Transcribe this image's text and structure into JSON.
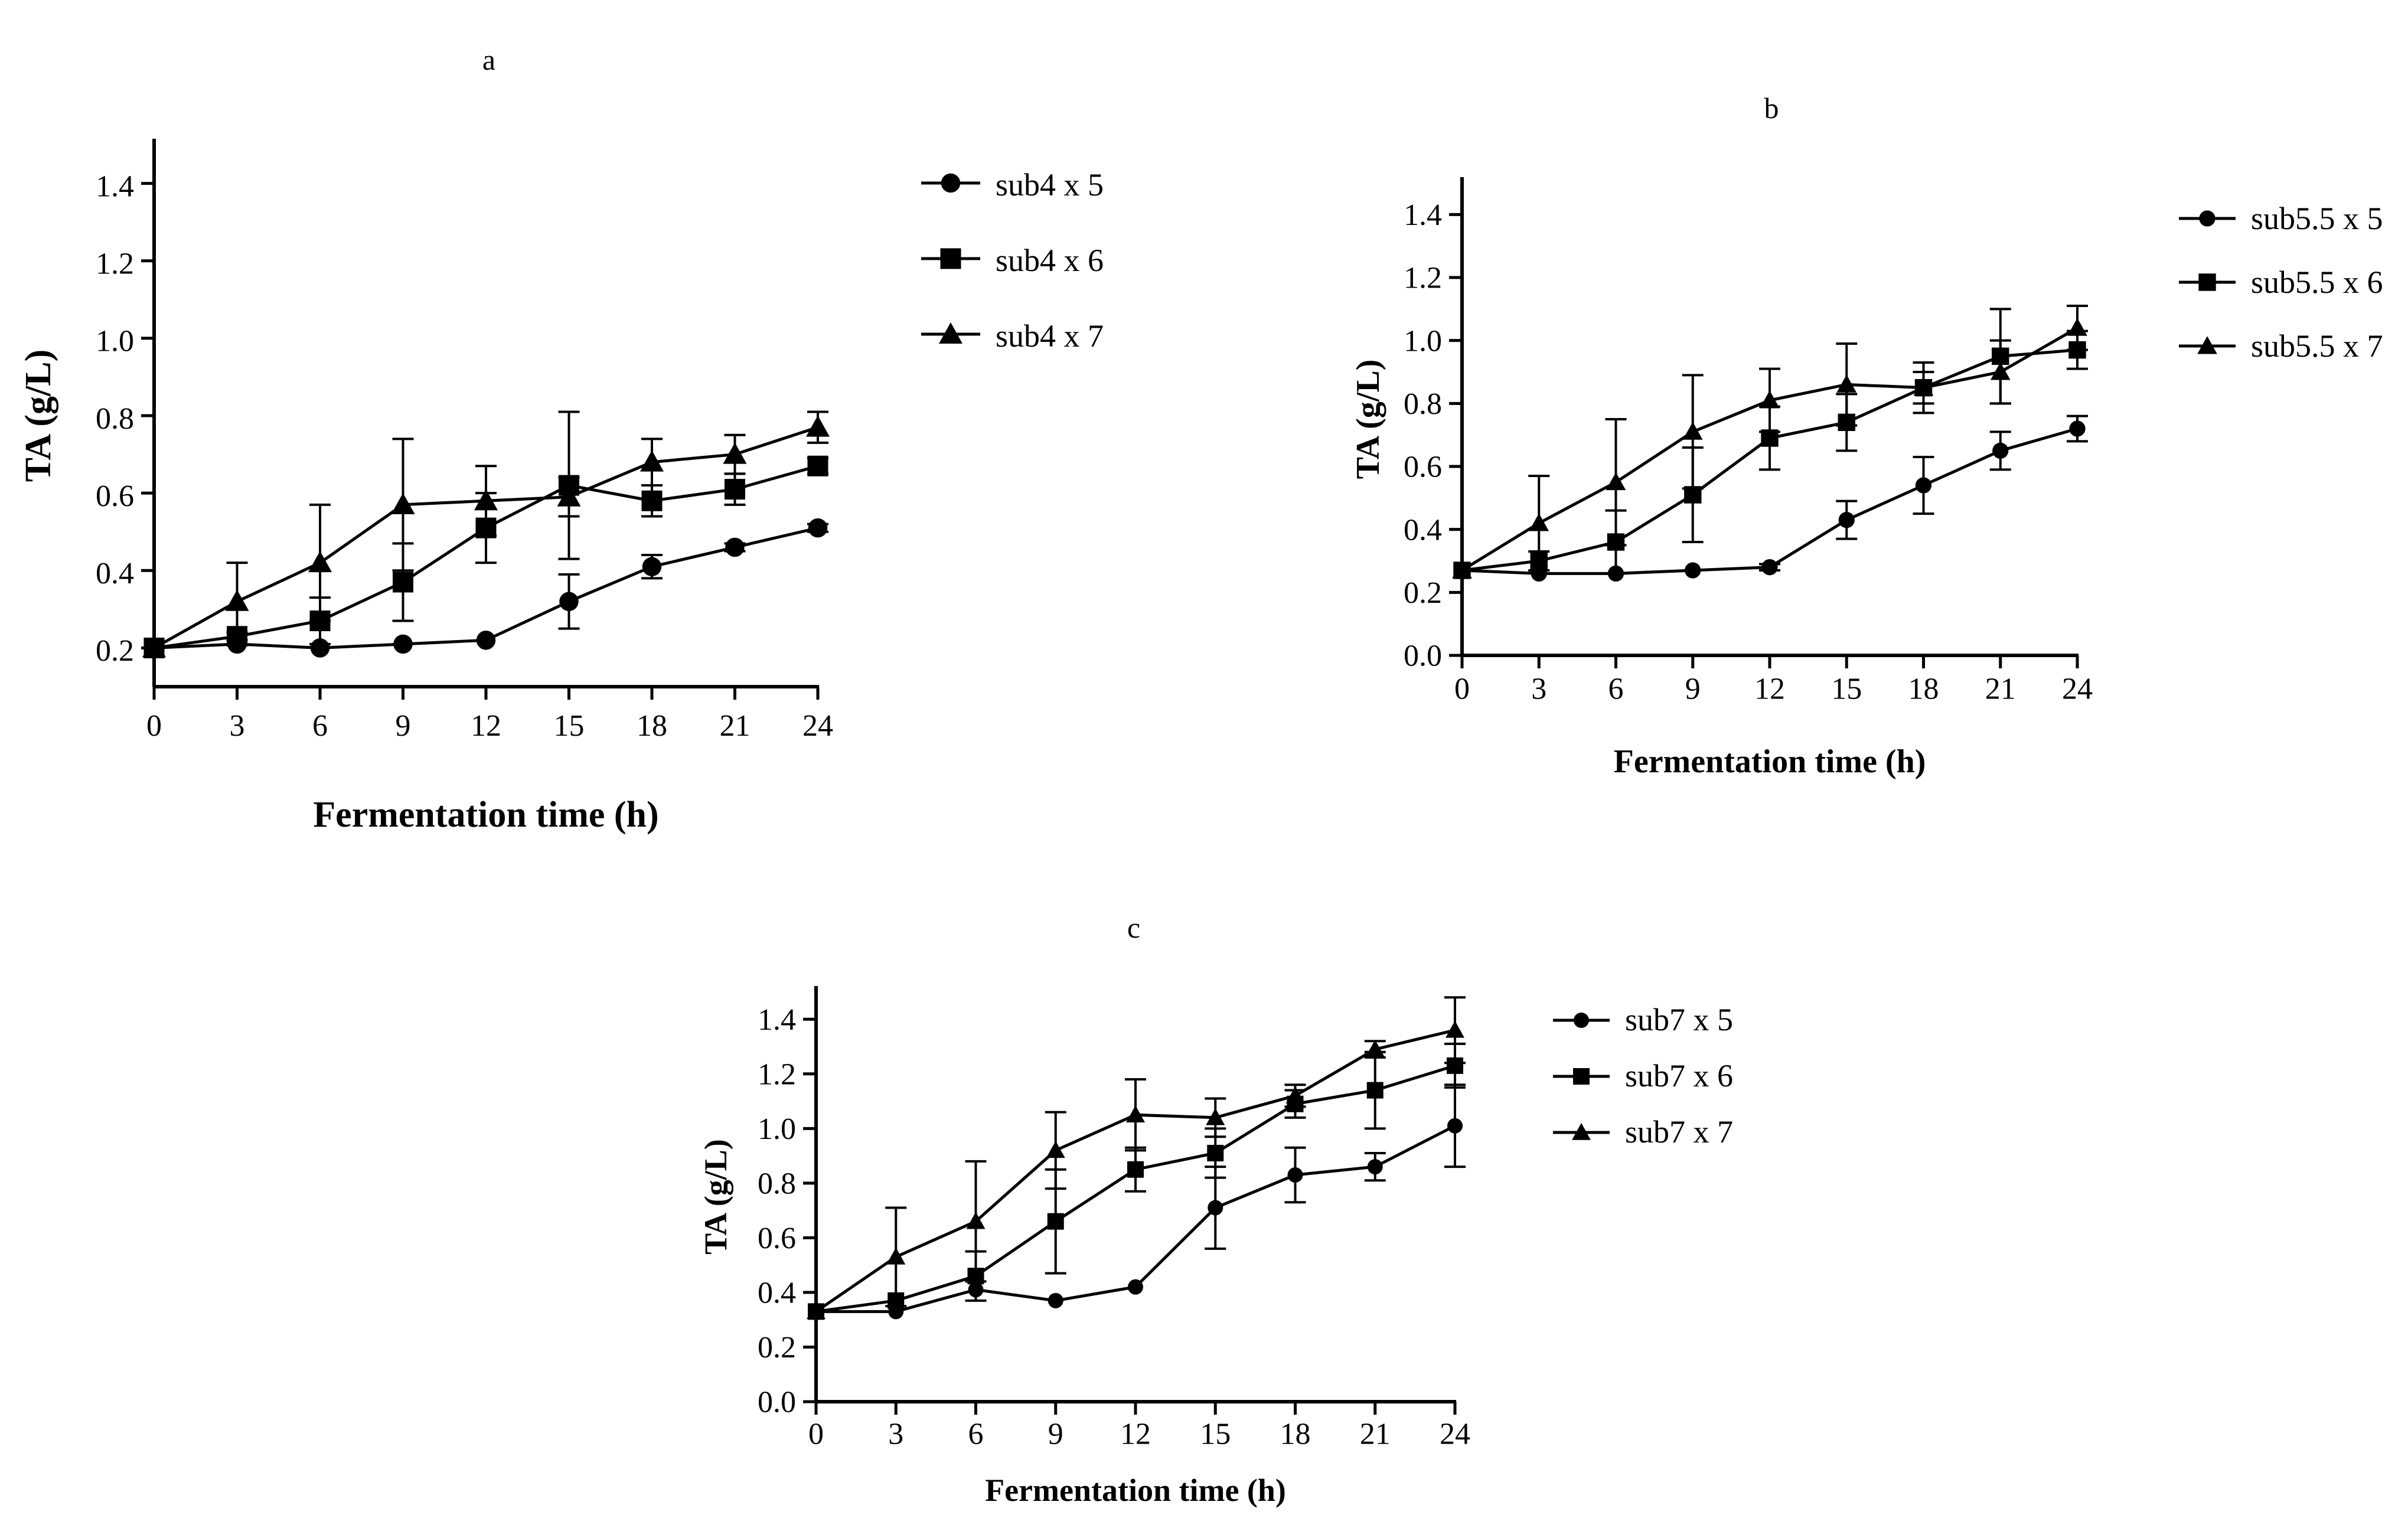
{
  "chart_data": [
    {
      "type": "line",
      "panel": "a",
      "xlabel": "Fermentation time (h)",
      "ylabel": "TA (g/L)",
      "x": [
        0,
        3,
        6,
        9,
        12,
        15,
        18,
        21,
        24
      ],
      "xticks": [
        "0",
        "3",
        "6",
        "9",
        "12",
        "15",
        "18",
        "21",
        "24"
      ],
      "xlim": [
        0,
        24
      ],
      "ylim": [
        0.1,
        1.5
      ],
      "yticks": [
        "0.2",
        "0.4",
        "0.6",
        "0.8",
        "1.0",
        "1.2",
        "1.4"
      ],
      "legend_position": "right",
      "series": [
        {
          "name": "sub4 x 5",
          "marker": "circle",
          "values": [
            0.2,
            0.21,
            0.2,
            0.21,
            0.22,
            0.32,
            0.41,
            0.46,
            0.51
          ],
          "errors": [
            0.0,
            0.0,
            0.0,
            0.0,
            0.0,
            0.07,
            0.03,
            0.01,
            0.01
          ]
        },
        {
          "name": "sub4 x 6",
          "marker": "square",
          "values": [
            0.2,
            0.23,
            0.27,
            0.37,
            0.51,
            0.62,
            0.58,
            0.61,
            0.67
          ],
          "errors": [
            0.0,
            0.01,
            0.06,
            0.1,
            0.09,
            0.19,
            0.04,
            0.04,
            0.02
          ]
        },
        {
          "name": "sub4 x 7",
          "marker": "triangle",
          "values": [
            0.2,
            0.32,
            0.42,
            0.57,
            0.58,
            0.59,
            0.68,
            0.7,
            0.77
          ],
          "errors": [
            0.0,
            0.1,
            0.15,
            0.17,
            0.09,
            0.05,
            0.06,
            0.05,
            0.04
          ]
        }
      ]
    },
    {
      "type": "line",
      "panel": "b",
      "xlabel": "Fermentation time (h)",
      "ylabel": "TA (g/L)",
      "x": [
        0,
        3,
        6,
        9,
        12,
        15,
        18,
        21,
        24
      ],
      "xticks": [
        "0",
        "3",
        "6",
        "9",
        "12",
        "15",
        "18",
        "21",
        "24"
      ],
      "xlim": [
        0,
        24
      ],
      "ylim": [
        0.0,
        1.5
      ],
      "yticks": [
        "0.0",
        "0.2",
        "0.4",
        "0.6",
        "0.8",
        "1.0",
        "1.2",
        "1.4"
      ],
      "legend_position": "right",
      "series": [
        {
          "name": "sub5.5 x 5",
          "marker": "circle",
          "values": [
            0.27,
            0.26,
            0.26,
            0.27,
            0.28,
            0.43,
            0.54,
            0.65,
            0.72
          ],
          "errors": [
            0.0,
            0.0,
            0.0,
            0.0,
            0.01,
            0.06,
            0.09,
            0.06,
            0.04
          ]
        },
        {
          "name": "sub5.5 x 6",
          "marker": "square",
          "values": [
            0.27,
            0.3,
            0.36,
            0.51,
            0.69,
            0.74,
            0.85,
            0.95,
            0.97
          ],
          "errors": [
            0.0,
            0.03,
            0.1,
            0.15,
            0.1,
            0.09,
            0.05,
            0.15,
            0.06
          ]
        },
        {
          "name": "sub5.5 x 7",
          "marker": "triangle",
          "values": [
            0.27,
            0.42,
            0.55,
            0.71,
            0.81,
            0.86,
            0.85,
            0.9,
            1.04
          ],
          "errors": [
            0.0,
            0.15,
            0.2,
            0.18,
            0.1,
            0.13,
            0.08,
            0.1,
            0.07
          ]
        }
      ]
    },
    {
      "type": "line",
      "panel": "c",
      "xlabel": "Fermentation time (h)",
      "ylabel": "TA (g/L)",
      "x": [
        0,
        3,
        6,
        9,
        12,
        15,
        18,
        21,
        24
      ],
      "xticks": [
        "0",
        "3",
        "6",
        "9",
        "12",
        "15",
        "18",
        "21",
        "24"
      ],
      "xlim": [
        0,
        24
      ],
      "ylim": [
        0.0,
        1.5
      ],
      "yticks": [
        "0.0",
        "0.2",
        "0.4",
        "0.6",
        "0.8",
        "1.0",
        "1.2",
        "1.4"
      ],
      "legend_position": "right",
      "series": [
        {
          "name": "sub7 x 5",
          "marker": "circle",
          "values": [
            0.33,
            0.33,
            0.41,
            0.37,
            0.42,
            0.71,
            0.83,
            0.86,
            1.01
          ],
          "errors": [
            0.0,
            0.0,
            0.0,
            0.0,
            0.0,
            0.15,
            0.1,
            0.05,
            0.15
          ]
        },
        {
          "name": "sub7 x 6",
          "marker": "square",
          "values": [
            0.33,
            0.37,
            0.46,
            0.66,
            0.85,
            0.91,
            1.09,
            1.14,
            1.23
          ],
          "errors": [
            0.0,
            0.0,
            0.09,
            0.19,
            0.08,
            0.09,
            0.05,
            0.14,
            0.08
          ]
        },
        {
          "name": "sub7 x 7",
          "marker": "triangle",
          "values": [
            0.33,
            0.53,
            0.66,
            0.92,
            1.05,
            1.04,
            1.12,
            1.29,
            1.36
          ],
          "errors": [
            0.0,
            0.18,
            0.22,
            0.14,
            0.13,
            0.07,
            0.04,
            0.03,
            0.12
          ]
        }
      ]
    }
  ]
}
